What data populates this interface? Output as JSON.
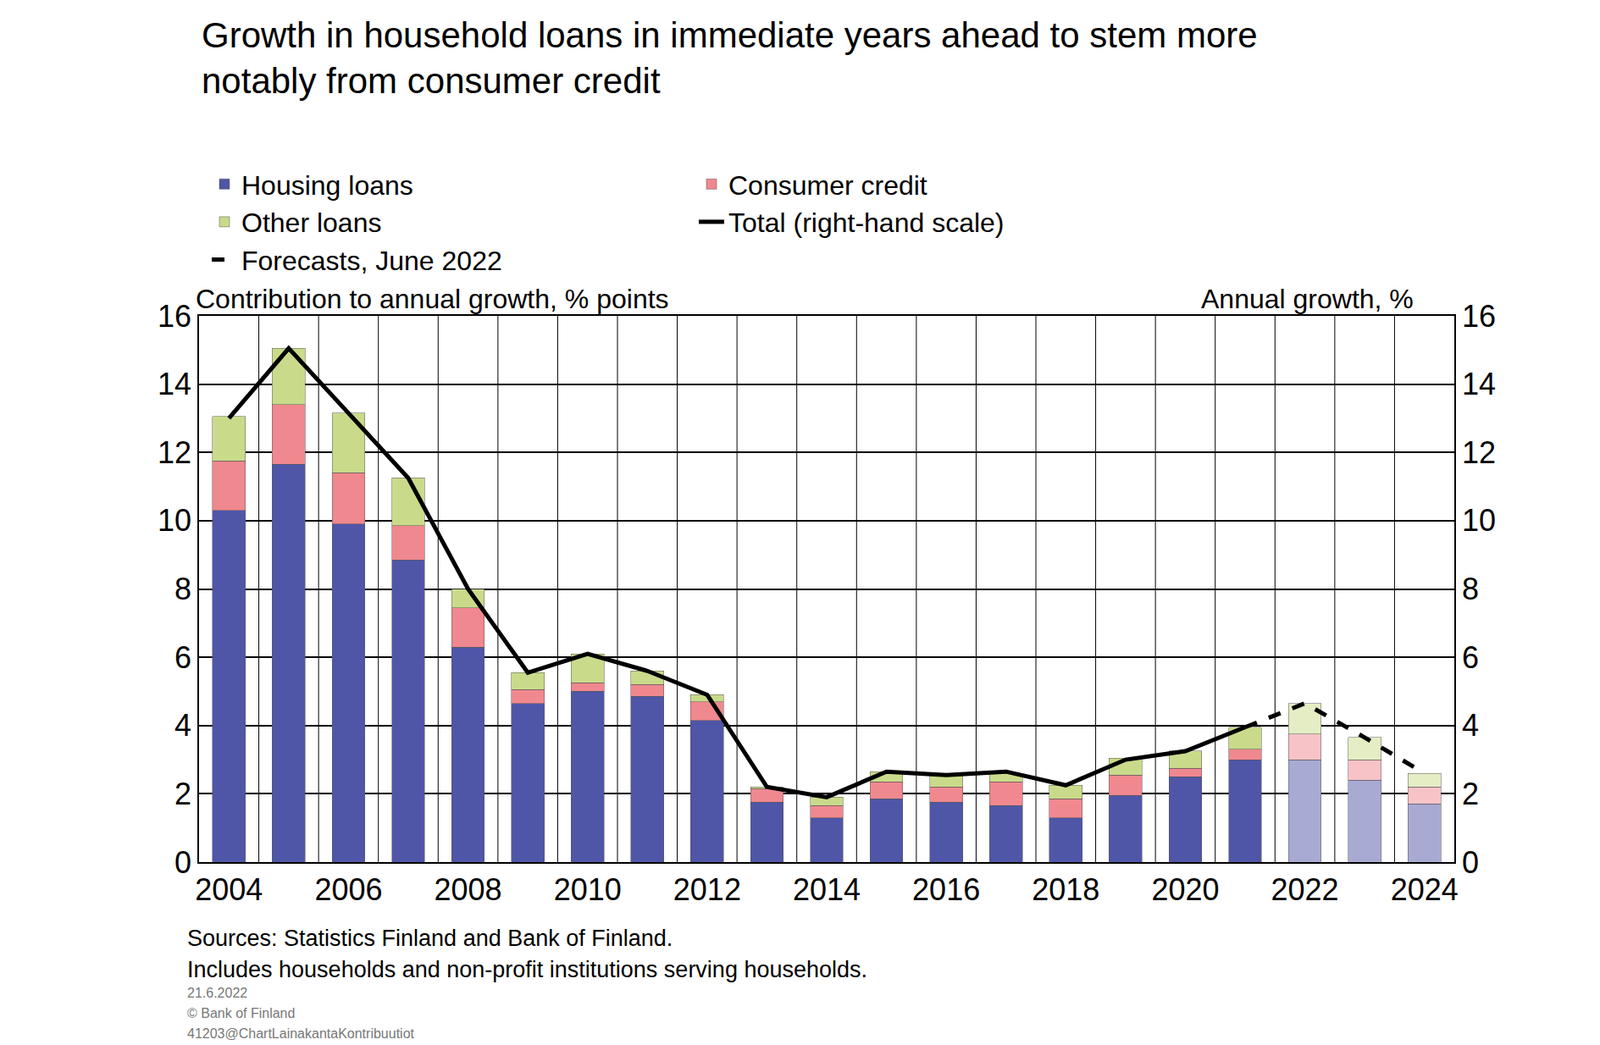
{
  "chart_data": {
    "type": "bar",
    "title": "Growth in household loans in immediate years ahead to stem more\nnotably from consumer credit",
    "y_label": "Contribution to annual growth, % points",
    "y2_label": "Annual growth, %",
    "categories": [
      "2004",
      null,
      "2006",
      null,
      "2008",
      null,
      "2010",
      null,
      "2012",
      null,
      "2014",
      null,
      "2016",
      null,
      "2018",
      null,
      "2020",
      null,
      "2022",
      null,
      "2024"
    ],
    "stacked": true,
    "grid": true,
    "legend": "top",
    "ylim": [
      0,
      16
    ],
    "yticks": [
      0,
      2,
      4,
      6,
      8,
      10,
      12,
      14,
      16
    ],
    "y2lim": [
      0,
      16
    ],
    "y2ticks": [
      0,
      2,
      4,
      6,
      8,
      10,
      12,
      14,
      16
    ],
    "series": [
      {
        "name": "Housing loans",
        "type": "bar",
        "colors": [
          "#4f56a8",
          "#4f56a8",
          "#4f56a8",
          "#4f56a8",
          "#4f56a8",
          "#4f56a8",
          "#4f56a8",
          "#4f56a8",
          "#4f56a8",
          "#4f56a8",
          "#4f56a8",
          "#4f56a8",
          "#4f56a8",
          "#4f56a8",
          "#4f56a8",
          "#4f56a8",
          "#4f56a8",
          "#4f56a8",
          "#a9aad4",
          "#a9aad4",
          "#a9aad4"
        ],
        "values": [
          10.3,
          11.65,
          9.9,
          8.85,
          6.3,
          4.65,
          5.0,
          4.85,
          4.15,
          1.75,
          1.3,
          1.85,
          1.75,
          1.65,
          1.3,
          1.95,
          2.5,
          3.0,
          3.0,
          2.4,
          1.7
        ]
      },
      {
        "name": "Consumer credit",
        "type": "bar",
        "colors": [
          "#f0888f",
          "#f0888f",
          "#f0888f",
          "#f0888f",
          "#f0888f",
          "#f0888f",
          "#f0888f",
          "#f0888f",
          "#f0888f",
          "#f0888f",
          "#f0888f",
          "#f0888f",
          "#f0888f",
          "#f0888f",
          "#f0888f",
          "#f0888f",
          "#f0888f",
          "#f0888f",
          "#f7c3c7",
          "#f7c3c7",
          "#f7c3c7"
        ],
        "values": [
          1.45,
          1.75,
          1.5,
          1.0,
          1.15,
          0.4,
          0.25,
          0.35,
          0.55,
          0.4,
          0.35,
          0.5,
          0.45,
          0.7,
          0.55,
          0.6,
          0.25,
          0.3,
          0.75,
          0.6,
          0.5
        ]
      },
      {
        "name": "Other loans",
        "type": "bar",
        "colors": [
          "#c9db8a",
          "#c9db8a",
          "#c9db8a",
          "#c9db8a",
          "#c9db8a",
          "#c9db8a",
          "#c9db8a",
          "#c9db8a",
          "#c9db8a",
          "#c9db8a",
          "#c9db8a",
          "#c9db8a",
          "#c9db8a",
          "#c9db8a",
          "#c9db8a",
          "#c9db8a",
          "#c9db8a",
          "#c9db8a",
          "#e4edc4",
          "#e4edc4",
          "#e4edc4"
        ],
        "values": [
          1.3,
          1.65,
          1.75,
          1.4,
          0.55,
          0.5,
          0.85,
          0.4,
          0.2,
          0.05,
          0.25,
          0.3,
          0.35,
          0.25,
          0.4,
          0.5,
          0.5,
          0.65,
          0.9,
          0.65,
          0.4
        ]
      },
      {
        "name": "Total (right-hand scale)",
        "type": "line",
        "axis": "y2",
        "color": "#000000",
        "line_style": "solid",
        "values": [
          13.0,
          15.05,
          13.15,
          11.25,
          8.0,
          5.55,
          6.1,
          5.6,
          4.9,
          2.2,
          1.9,
          2.65,
          2.55,
          2.65,
          2.25,
          3.0,
          3.25,
          3.95,
          null,
          null,
          null
        ]
      },
      {
        "name": "Forecasts, June 2022",
        "type": "line",
        "axis": "y2",
        "color": "#000000",
        "line_style": "dashed",
        "values": [
          null,
          null,
          null,
          null,
          null,
          null,
          null,
          null,
          null,
          null,
          null,
          null,
          null,
          null,
          null,
          null,
          null,
          3.95,
          4.65,
          3.65,
          2.6
        ]
      }
    ],
    "notes": [
      "Sources: Statistics Finland and Bank of Finland.",
      "Includes households and non-profit institutions serving households.",
      "21.6.2022",
      "© Bank of Finland",
      "41203@ChartLainakantaKontribuutiot"
    ]
  }
}
